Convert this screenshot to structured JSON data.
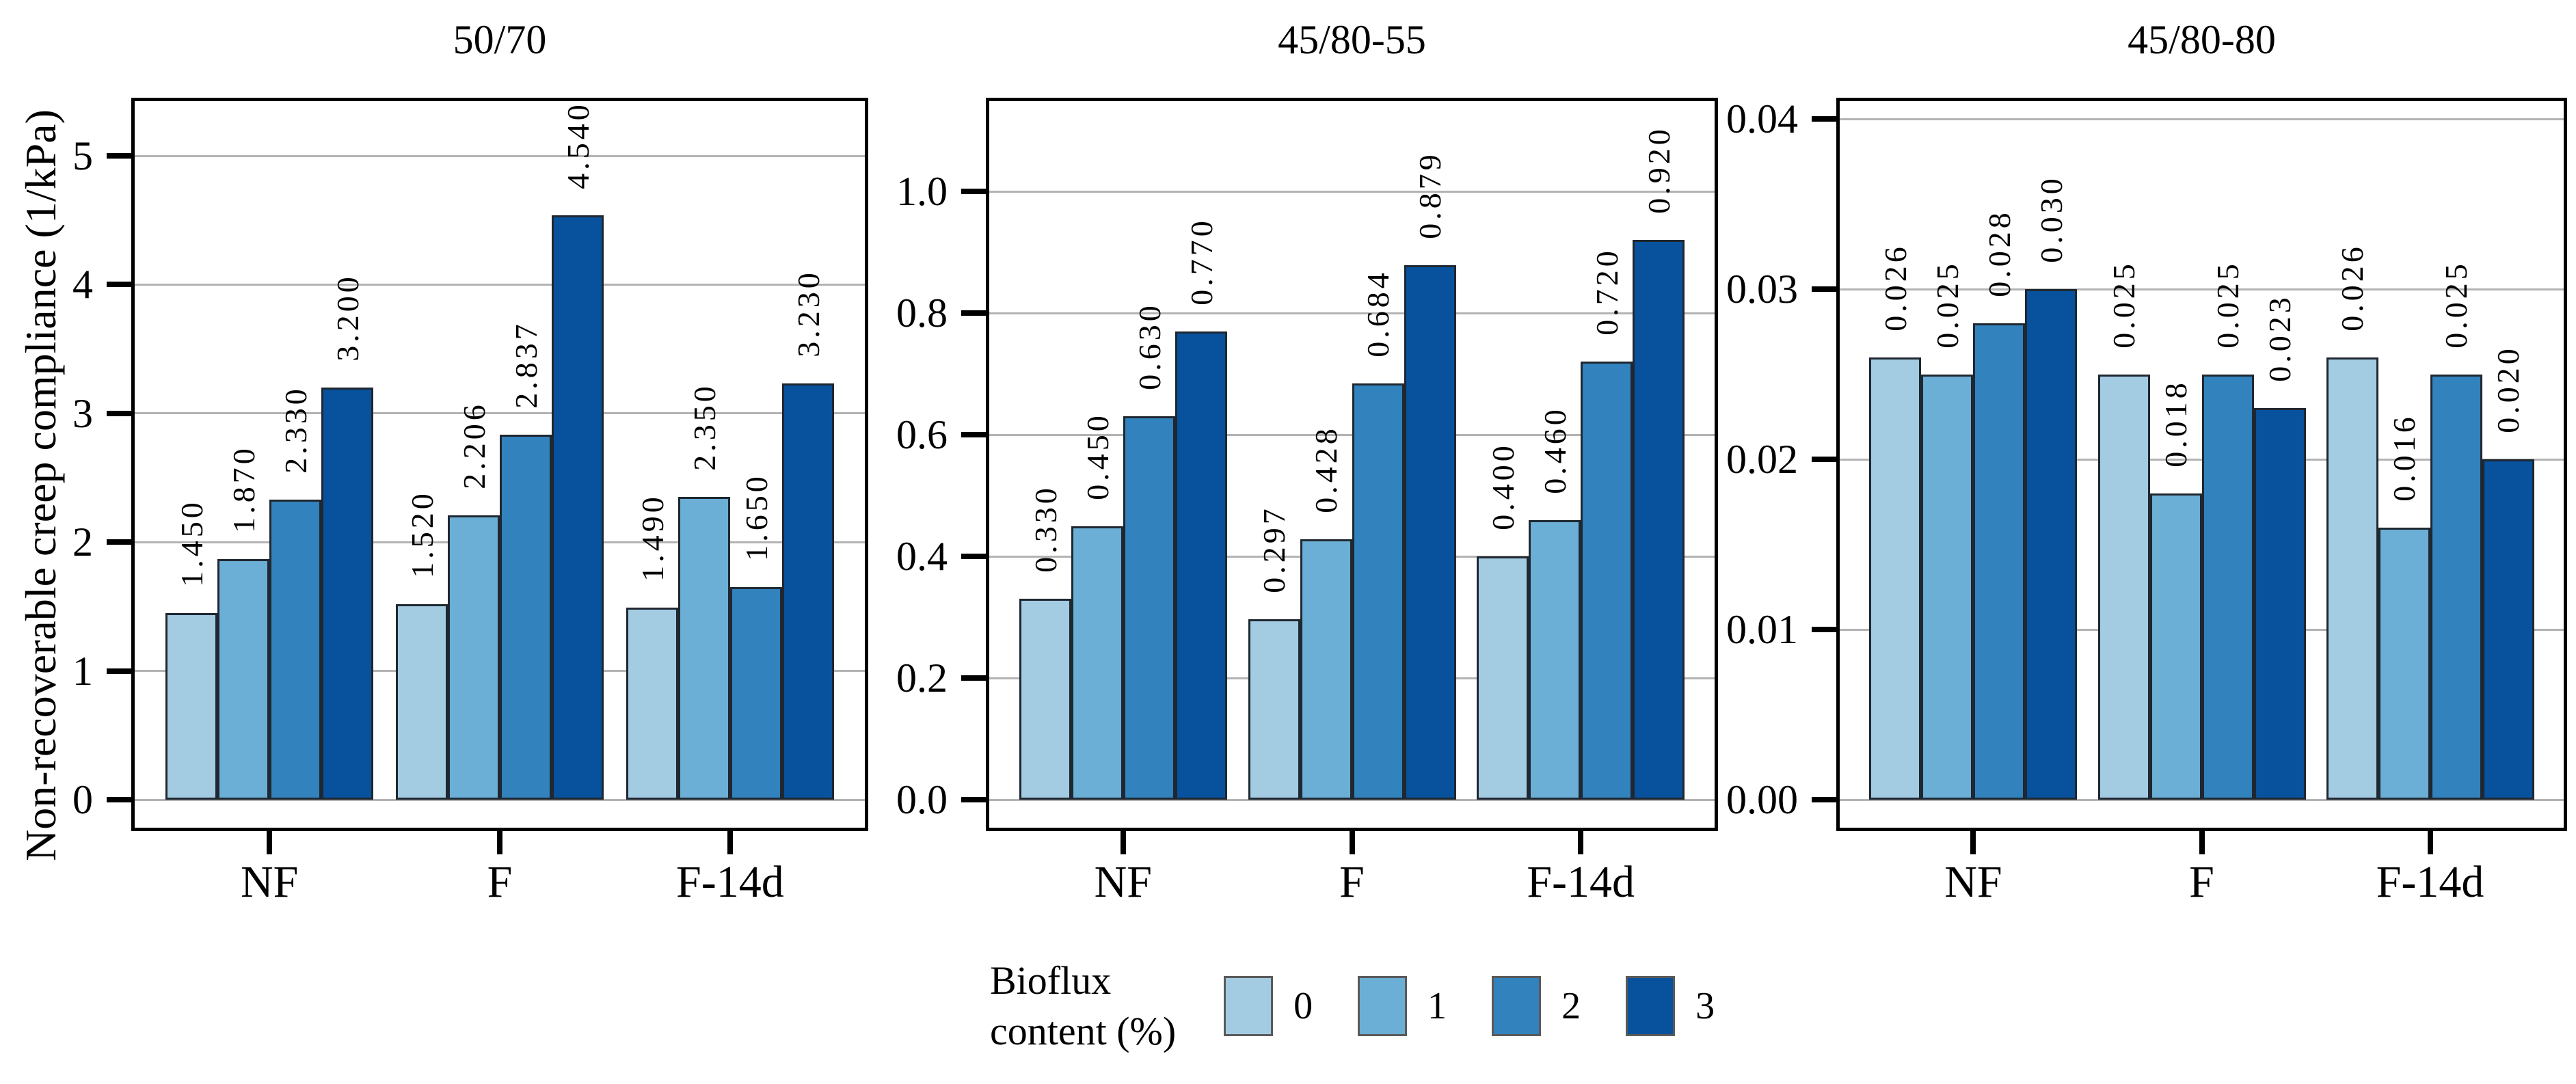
{
  "figure": {
    "ylabel": "Non-recoverable creep compliance (1/kPa)",
    "legend": {
      "title_line1": "Bioflux",
      "title_line2": "content (%)",
      "items": [
        {
          "label": "0",
          "color": "#a3cce3"
        },
        {
          "label": "1",
          "color": "#6baed6"
        },
        {
          "label": "2",
          "color": "#3182bd"
        },
        {
          "label": "3",
          "color": "#08519c"
        }
      ]
    },
    "colors": {
      "palette": [
        "#a3cce3",
        "#6baed6",
        "#3182bd",
        "#08519c"
      ],
      "bar_edge": "#1f2730",
      "gridline": "#b3b3b3",
      "frame": "#000000",
      "background": "#ffffff",
      "text": "#000000"
    }
  },
  "chart_data": [
    {
      "type": "bar",
      "title": "50/70",
      "categories": [
        "NF",
        "F",
        "F-14d"
      ],
      "legend_title": "Bioflux content (%)",
      "series": [
        {
          "name": "0",
          "values": [
            1.45,
            1.52,
            1.49
          ]
        },
        {
          "name": "1",
          "values": [
            1.87,
            2.206,
            2.35
          ]
        },
        {
          "name": "2",
          "values": [
            2.33,
            2.837,
            1.65
          ]
        },
        {
          "name": "3",
          "values": [
            3.2,
            4.54,
            3.23
          ]
        }
      ],
      "value_labels": [
        [
          "1.450",
          "1.870",
          "2.330",
          "3.200"
        ],
        [
          "1.520",
          "2.206",
          "2.837",
          "4.540"
        ],
        [
          "1.490",
          "2.350",
          "1.650",
          "3.230"
        ]
      ],
      "xlabel": "",
      "ylabel": "Non-recoverable creep compliance (1/kPa)",
      "yticks": [
        0,
        1,
        2,
        3,
        4,
        5
      ],
      "ytick_labels": [
        "0",
        "1",
        "2",
        "3",
        "4",
        "5"
      ],
      "ylim": [
        -0.24,
        5.45
      ],
      "grid": true,
      "legend_position": "bottom"
    },
    {
      "type": "bar",
      "title": "45/80-55",
      "categories": [
        "NF",
        "F",
        "F-14d"
      ],
      "legend_title": "Bioflux content (%)",
      "series": [
        {
          "name": "0",
          "values": [
            0.33,
            0.297,
            0.4
          ]
        },
        {
          "name": "1",
          "values": [
            0.45,
            0.428,
            0.46
          ]
        },
        {
          "name": "2",
          "values": [
            0.63,
            0.684,
            0.72
          ]
        },
        {
          "name": "3",
          "values": [
            0.77,
            0.879,
            0.92
          ]
        }
      ],
      "value_labels": [
        [
          "0.330",
          "0.450",
          "0.630",
          "0.770"
        ],
        [
          "0.297",
          "0.428",
          "0.684",
          "0.879"
        ],
        [
          "0.400",
          "0.460",
          "0.720",
          "0.920"
        ]
      ],
      "xlabel": "",
      "ylabel": "Non-recoverable creep compliance (1/kPa)",
      "yticks": [
        0,
        0.2,
        0.4,
        0.6,
        0.8,
        1.0
      ],
      "ytick_labels": [
        "0.0",
        "0.2",
        "0.4",
        "0.6",
        "0.8",
        "1.0"
      ],
      "ylim": [
        -0.05,
        1.15
      ],
      "grid": true,
      "legend_position": "bottom"
    },
    {
      "type": "bar",
      "title": "45/80-80",
      "categories": [
        "NF",
        "F",
        "F-14d"
      ],
      "legend_title": "Bioflux content (%)",
      "series": [
        {
          "name": "0",
          "values": [
            0.026,
            0.025,
            0.026
          ]
        },
        {
          "name": "1",
          "values": [
            0.025,
            0.018,
            0.016
          ]
        },
        {
          "name": "2",
          "values": [
            0.028,
            0.025,
            0.025
          ]
        },
        {
          "name": "3",
          "values": [
            0.03,
            0.023,
            0.02
          ]
        }
      ],
      "value_labels": [
        [
          "0.026",
          "0.025",
          "0.028",
          "0.030"
        ],
        [
          "0.025",
          "0.018",
          "0.025",
          "0.023"
        ],
        [
          "0.026",
          "0.016",
          "0.025",
          "0.020"
        ]
      ],
      "xlabel": "",
      "ylabel": "Non-recoverable creep compliance (1/kPa)",
      "yticks": [
        0,
        0.01,
        0.02,
        0.03,
        0.04
      ],
      "ytick_labels": [
        "0.00",
        "0.01",
        "0.02",
        "0.03",
        "0.04"
      ],
      "ylim": [
        -0.002,
        0.0412
      ],
      "grid": true,
      "legend_position": "bottom"
    }
  ]
}
